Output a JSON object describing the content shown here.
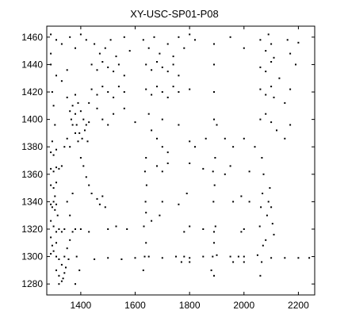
{
  "chart_data": {
    "type": "scatter",
    "title": "XY-USC-SP01-P08",
    "xlabel": "",
    "ylabel": "",
    "xlim": [
      1275,
      2260
    ],
    "ylim": [
      1272,
      1468
    ],
    "x_ticks": [
      1400,
      1600,
      1800,
      2000,
      2200
    ],
    "y_ticks": [
      1280,
      1300,
      1320,
      1340,
      1360,
      1380,
      1400,
      1420,
      1440,
      1460
    ],
    "grid": false,
    "legend": "none",
    "marker_color": "#000000",
    "series": [
      {
        "points": [
          [
            1290,
            1462
          ],
          [
            1310,
            1458
          ],
          [
            1330,
            1455
          ],
          [
            1360,
            1460
          ],
          [
            1380,
            1452
          ],
          [
            1400,
            1462
          ],
          [
            1420,
            1458
          ],
          [
            1450,
            1455
          ],
          [
            1470,
            1448
          ],
          [
            1490,
            1452
          ],
          [
            1510,
            1458
          ],
          [
            1530,
            1446
          ],
          [
            1560,
            1460
          ],
          [
            1580,
            1450
          ],
          [
            1630,
            1458
          ],
          [
            1650,
            1452
          ],
          [
            1670,
            1460
          ],
          [
            1690,
            1448
          ],
          [
            1720,
            1455
          ],
          [
            1740,
            1446
          ],
          [
            1760,
            1460
          ],
          [
            1780,
            1452
          ],
          [
            1800,
            1462
          ],
          [
            1820,
            1458
          ],
          [
            1890,
            1455
          ],
          [
            1950,
            1460
          ],
          [
            2000,
            1452
          ],
          [
            2060,
            1458
          ],
          [
            2080,
            1450
          ],
          [
            2090,
            1462
          ],
          [
            2100,
            1455
          ],
          [
            2110,
            1445
          ],
          [
            2160,
            1458
          ],
          [
            1440,
            1440
          ],
          [
            1460,
            1436
          ],
          [
            1480,
            1442
          ],
          [
            1500,
            1438
          ],
          [
            1520,
            1435
          ],
          [
            1540,
            1440
          ],
          [
            1560,
            1432
          ],
          [
            1640,
            1440
          ],
          [
            1660,
            1436
          ],
          [
            1680,
            1442
          ],
          [
            1700,
            1438
          ],
          [
            1720,
            1435
          ],
          [
            1740,
            1440
          ],
          [
            1760,
            1432
          ],
          [
            1890,
            1440
          ],
          [
            2060,
            1438
          ],
          [
            2080,
            1435
          ],
          [
            2100,
            1442
          ],
          [
            1290,
            1440
          ],
          [
            1310,
            1432
          ],
          [
            1330,
            1428
          ],
          [
            1350,
            1436
          ],
          [
            1440,
            1422
          ],
          [
            1460,
            1418
          ],
          [
            1480,
            1424
          ],
          [
            1500,
            1420
          ],
          [
            1520,
            1416
          ],
          [
            1540,
            1424
          ],
          [
            1560,
            1420
          ],
          [
            1640,
            1422
          ],
          [
            1660,
            1418
          ],
          [
            1680,
            1424
          ],
          [
            1700,
            1420
          ],
          [
            1720,
            1416
          ],
          [
            1740,
            1424
          ],
          [
            1760,
            1420
          ],
          [
            1800,
            1422
          ],
          [
            1890,
            1420
          ],
          [
            2060,
            1422
          ],
          [
            2080,
            1418
          ],
          [
            2100,
            1424
          ],
          [
            2110,
            1416
          ],
          [
            2170,
            1422
          ],
          [
            1380,
            1418
          ],
          [
            1390,
            1412
          ],
          [
            1400,
            1406
          ],
          [
            1410,
            1400
          ],
          [
            1420,
            1396
          ],
          [
            1380,
            1404
          ],
          [
            1385,
            1396
          ],
          [
            1395,
            1390
          ],
          [
            1405,
            1386
          ],
          [
            1415,
            1392
          ],
          [
            1370,
            1410
          ],
          [
            1365,
            1400
          ],
          [
            1425,
            1384
          ],
          [
            1430,
            1398
          ],
          [
            1430,
            1412
          ],
          [
            1460,
            1408
          ],
          [
            1480,
            1400
          ],
          [
            1500,
            1396
          ],
          [
            1520,
            1404
          ],
          [
            1560,
            1408
          ],
          [
            1600,
            1398
          ],
          [
            1650,
            1404
          ],
          [
            1700,
            1400
          ],
          [
            1760,
            1396
          ],
          [
            1890,
            1400
          ],
          [
            1900,
            1396
          ],
          [
            2060,
            1400
          ],
          [
            2080,
            1404
          ],
          [
            2100,
            1398
          ],
          [
            1290,
            1376
          ],
          [
            1310,
            1378
          ],
          [
            1340,
            1380
          ],
          [
            1290,
            1364
          ],
          [
            1300,
            1362
          ],
          [
            1310,
            1365
          ],
          [
            1320,
            1364
          ],
          [
            1330,
            1366
          ],
          [
            1290,
            1352
          ],
          [
            1300,
            1350
          ],
          [
            1310,
            1354
          ],
          [
            1290,
            1338
          ],
          [
            1295,
            1336
          ],
          [
            1300,
            1340
          ],
          [
            1305,
            1334
          ],
          [
            1310,
            1338
          ],
          [
            1315,
            1330
          ],
          [
            1290,
            1326
          ],
          [
            1300,
            1322
          ],
          [
            1310,
            1318
          ],
          [
            1320,
            1320
          ],
          [
            1330,
            1318
          ],
          [
            1340,
            1320
          ],
          [
            1290,
            1314
          ],
          [
            1295,
            1308
          ],
          [
            1300,
            1304
          ],
          [
            1310,
            1300
          ],
          [
            1320,
            1298
          ],
          [
            1330,
            1294
          ],
          [
            1340,
            1300
          ],
          [
            1350,
            1306
          ],
          [
            1360,
            1312
          ],
          [
            1370,
            1318
          ],
          [
            1380,
            1320
          ],
          [
            1290,
            1302
          ],
          [
            1310,
            1290
          ],
          [
            1320,
            1286
          ],
          [
            1330,
            1282
          ],
          [
            1340,
            1288
          ],
          [
            1320,
            1280
          ],
          [
            1335,
            1284
          ],
          [
            1345,
            1292
          ],
          [
            1355,
            1298
          ],
          [
            1400,
            1320
          ],
          [
            1430,
            1318
          ],
          [
            1500,
            1320
          ],
          [
            1530,
            1322
          ],
          [
            1570,
            1320
          ],
          [
            1450,
            1298
          ],
          [
            1500,
            1299
          ],
          [
            1550,
            1298
          ],
          [
            1600,
            1299
          ],
          [
            1650,
            1300
          ],
          [
            1700,
            1299
          ],
          [
            1750,
            1300
          ],
          [
            1800,
            1299
          ],
          [
            1850,
            1300
          ],
          [
            1900,
            1301
          ],
          [
            1950,
            1300
          ],
          [
            2000,
            1300
          ],
          [
            2050,
            1301
          ],
          [
            2100,
            1299
          ],
          [
            2150,
            1299
          ],
          [
            2200,
            1299
          ],
          [
            2240,
            1299
          ],
          [
            1630,
            1290
          ],
          [
            1635,
            1300
          ],
          [
            1640,
            1310
          ],
          [
            1632,
            1322
          ],
          [
            1638,
            1340
          ],
          [
            1642,
            1352
          ],
          [
            1636,
            1362
          ],
          [
            1640,
            1372
          ],
          [
            1880,
            1290
          ],
          [
            1885,
            1300
          ],
          [
            1890,
            1310
          ],
          [
            1895,
            1322
          ],
          [
            1888,
            1340
          ],
          [
            1892,
            1352
          ],
          [
            1886,
            1362
          ],
          [
            1894,
            1372
          ],
          [
            1890,
            1286
          ],
          [
            2060,
            1286
          ],
          [
            2065,
            1296
          ],
          [
            2070,
            1308
          ],
          [
            2058,
            1322
          ],
          [
            2062,
            1336
          ],
          [
            2068,
            1346
          ],
          [
            2072,
            1360
          ],
          [
            2066,
            1372
          ],
          [
            2080,
            1312
          ],
          [
            2085,
            1330
          ],
          [
            2090,
            1340
          ],
          [
            2095,
            1350
          ],
          [
            2100,
            1336
          ],
          [
            2105,
            1324
          ],
          [
            2110,
            1316
          ],
          [
            1460,
            1342
          ],
          [
            1470,
            1338
          ],
          [
            1480,
            1344
          ],
          [
            1490,
            1336
          ],
          [
            1700,
            1340
          ],
          [
            1760,
            1338
          ],
          [
            1790,
            1346
          ],
          [
            1960,
            1340
          ],
          [
            1990,
            1344
          ],
          [
            2020,
            1340
          ],
          [
            1770,
            1296
          ],
          [
            1780,
            1300
          ],
          [
            1800,
            1296
          ],
          [
            1960,
            1296
          ],
          [
            1980,
            1300
          ],
          [
            2000,
            1296
          ],
          [
            1780,
            1318
          ],
          [
            1800,
            1322
          ],
          [
            1850,
            1320
          ],
          [
            1890,
            1318
          ],
          [
            1990,
            1318
          ],
          [
            2000,
            1320
          ],
          [
            1640,
            1332
          ],
          [
            1660,
            1326
          ],
          [
            1690,
            1330
          ],
          [
            1680,
            1366
          ],
          [
            1700,
            1362
          ],
          [
            1720,
            1368
          ],
          [
            1800,
            1368
          ],
          [
            1850,
            1364
          ],
          [
            1930,
            1360
          ],
          [
            1950,
            1366
          ],
          [
            2020,
            1362
          ],
          [
            1350,
            1416
          ],
          [
            1360,
            1406
          ],
          [
            1370,
            1396
          ],
          [
            1380,
            1390
          ],
          [
            1390,
            1384
          ],
          [
            1350,
            1386
          ],
          [
            1360,
            1380
          ],
          [
            1400,
            1372
          ],
          [
            1410,
            1366
          ],
          [
            1420,
            1358
          ],
          [
            1430,
            1352
          ],
          [
            1440,
            1346
          ],
          [
            1660,
            1392
          ],
          [
            1680,
            1386
          ],
          [
            1700,
            1380
          ],
          [
            1720,
            1376
          ],
          [
            1800,
            1384
          ],
          [
            1820,
            1380
          ],
          [
            1860,
            1386
          ],
          [
            1930,
            1386
          ],
          [
            1960,
            1380
          ],
          [
            2000,
            1386
          ],
          [
            2040,
            1380
          ],
          [
            2120,
            1392
          ],
          [
            2150,
            1386
          ],
          [
            2170,
            1396
          ],
          [
            2190,
            1440
          ],
          [
            2200,
            1456
          ],
          [
            2170,
            1448
          ],
          [
            2130,
            1430
          ],
          [
            2150,
            1412
          ],
          [
            1290,
            1448
          ],
          [
            1295,
            1420
          ],
          [
            1300,
            1410
          ],
          [
            1305,
            1396
          ],
          [
            1295,
            1384
          ],
          [
            1300,
            1374
          ],
          [
            1305,
            1344
          ],
          [
            1310,
            1310
          ],
          [
            1350,
            1340
          ],
          [
            1360,
            1330
          ],
          [
            1370,
            1346
          ],
          [
            1385,
            1300
          ],
          [
            1380,
            1280
          ],
          [
            1395,
            1290
          ]
        ]
      }
    ]
  }
}
